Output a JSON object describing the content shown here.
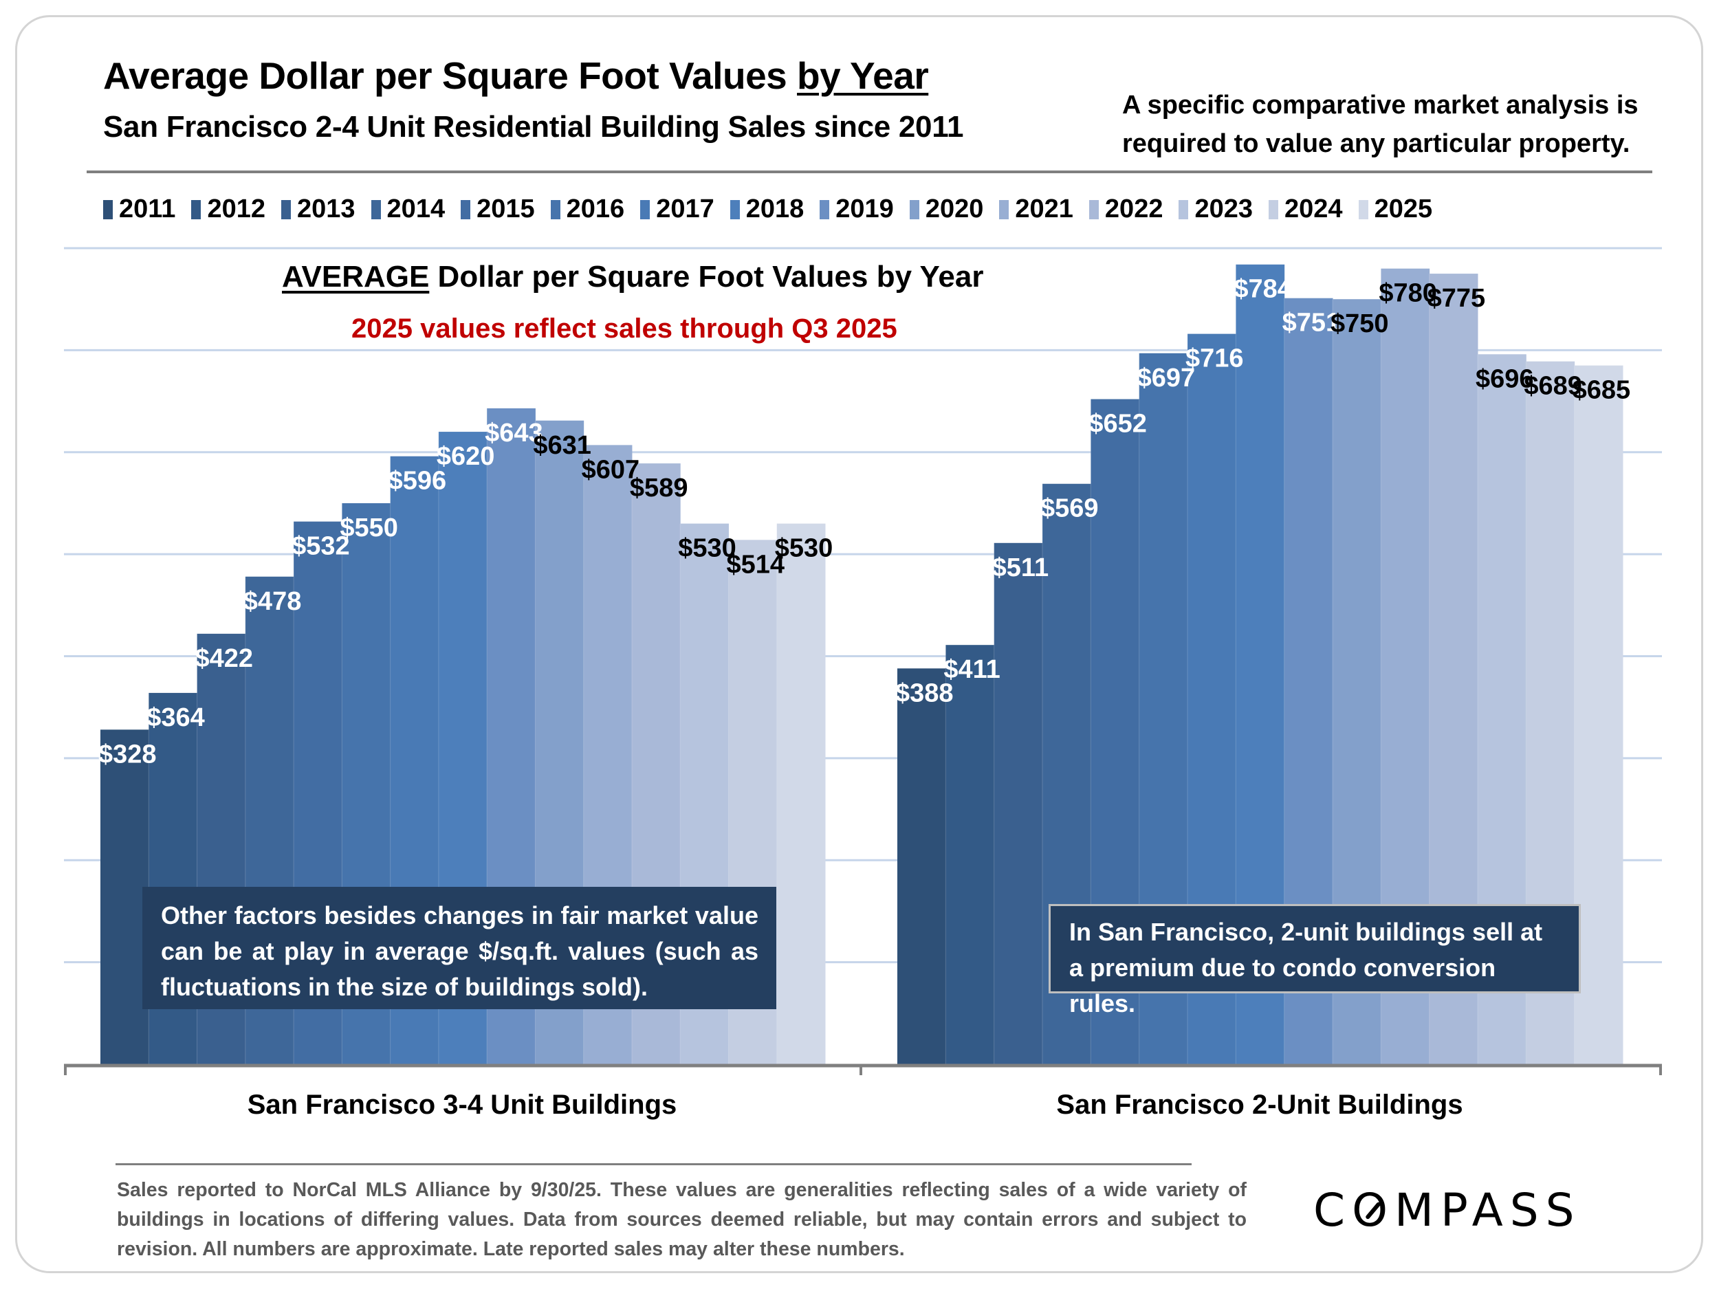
{
  "header": {
    "title_main": "Average Dollar per Square Foot Values ",
    "title_underlined": "by Year",
    "subtitle": "San Francisco 2-4 Unit Residential Building Sales since 2011",
    "disclaimer_line1": "A specific comparative market analysis is",
    "disclaimer_line2": "required to value any particular property."
  },
  "chart_header": {
    "title_underlined": "AVERAGE",
    "title_rest": " Dollar per Square Foot Values by Year",
    "note": "2025 values reflect sales through Q3 2025"
  },
  "annotations": {
    "left": "Other factors besides changes in fair market value can be at play in average $/sq.ft. values (such as fluctuations in the size of buildings sold).",
    "right": "In San Francisco, 2-unit buildings sell at a premium due to condo conversion rules."
  },
  "footer": {
    "note": "Sales reported to NorCal MLS Alliance by 9/30/25. These values are generalities reflecting sales of a wide variety of buildings in locations of differing values. Data from sources deemed reliable, but may contain errors and subject to revision. All numbers are approximate. Late reported sales may alter these numbers.",
    "logo_prefix": "C",
    "logo_suffix": "MPASS",
    "logo_o": "O"
  },
  "chart_data": {
    "type": "bar",
    "title": "AVERAGE Dollar per Square Foot Values by Year",
    "subtitle": "2025 values reflect sales through Q3 2025",
    "xlabel": "",
    "ylabel": "",
    "ylim": [
      0,
      800
    ],
    "y_gridlines": [
      100,
      200,
      300,
      400,
      500,
      600,
      700,
      800
    ],
    "grid": true,
    "legend_position": "top",
    "categories": [
      "San Francisco 3-4 Unit Buildings",
      "San Francisco 2-Unit Buildings"
    ],
    "series": [
      {
        "name": "2011",
        "color": "#2e5077",
        "label_color": "#ffffff",
        "values": [
          328,
          388
        ],
        "labels": [
          "$328",
          "$388"
        ]
      },
      {
        "name": "2012",
        "color": "#335a87",
        "label_color": "#ffffff",
        "values": [
          364,
          411
        ],
        "labels": [
          "$364",
          "$411"
        ]
      },
      {
        "name": "2013",
        "color": "#3a608f",
        "label_color": "#ffffff",
        "values": [
          422,
          511
        ],
        "labels": [
          "$422",
          "$511"
        ]
      },
      {
        "name": "2014",
        "color": "#3e6799",
        "label_color": "#ffffff",
        "values": [
          478,
          569
        ],
        "labels": [
          "$478",
          "$569"
        ]
      },
      {
        "name": "2015",
        "color": "#426da3",
        "label_color": "#ffffff",
        "values": [
          532,
          652
        ],
        "labels": [
          "$532",
          "$652"
        ]
      },
      {
        "name": "2016",
        "color": "#4674ac",
        "label_color": "#ffffff",
        "values": [
          550,
          697
        ],
        "labels": [
          "$550",
          "$697"
        ]
      },
      {
        "name": "2017",
        "color": "#497ab5",
        "label_color": "#ffffff",
        "values": [
          596,
          716
        ],
        "labels": [
          "$596",
          "$716"
        ]
      },
      {
        "name": "2018",
        "color": "#4d7fbb",
        "label_color": "#ffffff",
        "values": [
          620,
          784
        ],
        "labels": [
          "$620",
          "$784"
        ]
      },
      {
        "name": "2019",
        "color": "#6b8fc3",
        "label_color": "#ffffff",
        "values": [
          643,
          751
        ],
        "labels": [
          "$643",
          "$751"
        ]
      },
      {
        "name": "2020",
        "color": "#83a0cb",
        "label_color": "#000000",
        "values": [
          631,
          750
        ],
        "labels": [
          "$631",
          "$750"
        ]
      },
      {
        "name": "2021",
        "color": "#98aed3",
        "label_color": "#000000",
        "values": [
          607,
          780
        ],
        "labels": [
          "$607",
          "$780"
        ]
      },
      {
        "name": "2022",
        "color": "#a9b9d8",
        "label_color": "#000000",
        "values": [
          589,
          775
        ],
        "labels": [
          "$589",
          "$775"
        ]
      },
      {
        "name": "2023",
        "color": "#b6c4de",
        "label_color": "#000000",
        "values": [
          530,
          696
        ],
        "labels": [
          "$530",
          "$696"
        ]
      },
      {
        "name": "2024",
        "color": "#c4cee2",
        "label_color": "#000000",
        "values": [
          514,
          689
        ],
        "labels": [
          "$514",
          "$689"
        ]
      },
      {
        "name": "2025",
        "color": "#d1d9e8",
        "label_color": "#000000",
        "values": [
          530,
          685
        ],
        "labels": [
          "$530",
          "$685"
        ]
      }
    ],
    "gridline_color": "#c6d5ea",
    "axis_color": "#808080"
  }
}
